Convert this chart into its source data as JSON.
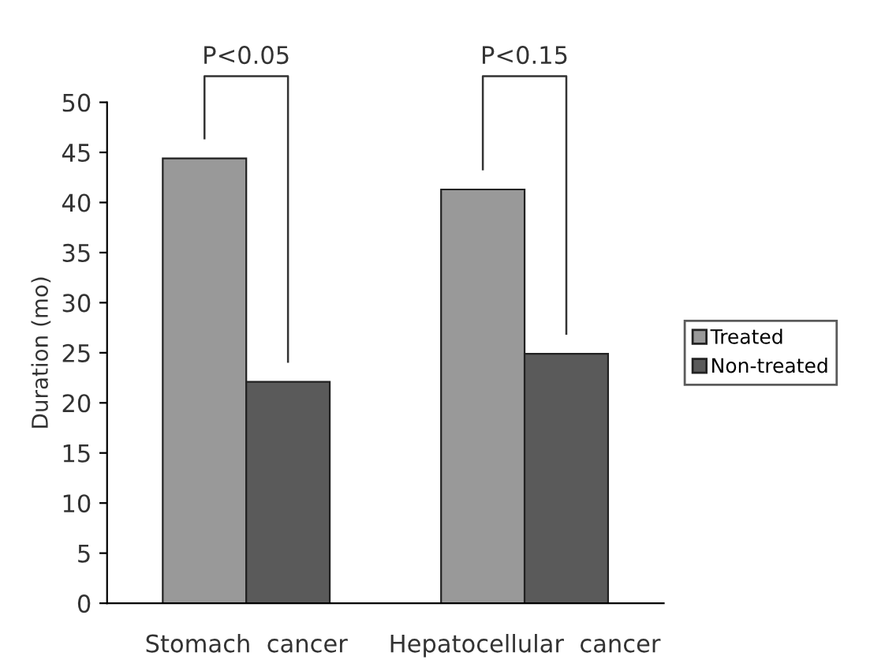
{
  "chart_data": {
    "type": "bar",
    "ylabel": "Duration (mo)",
    "categories": [
      "Stomach  cancer",
      "Hepatocellular  cancer"
    ],
    "series": [
      {
        "name": "Treated",
        "color": "#999999",
        "values": [
          44.4,
          41.3
        ]
      },
      {
        "name": "Non-treated",
        "color": "#5a5a5a",
        "values": [
          22.1,
          24.9
        ]
      }
    ],
    "ylim": [
      0,
      50
    ],
    "yticks": [
      0,
      5,
      10,
      15,
      20,
      25,
      30,
      35,
      40,
      45,
      50
    ],
    "grid": false,
    "legend": "right",
    "annotations": [
      "P<0.05",
      "P<0.15"
    ]
  }
}
